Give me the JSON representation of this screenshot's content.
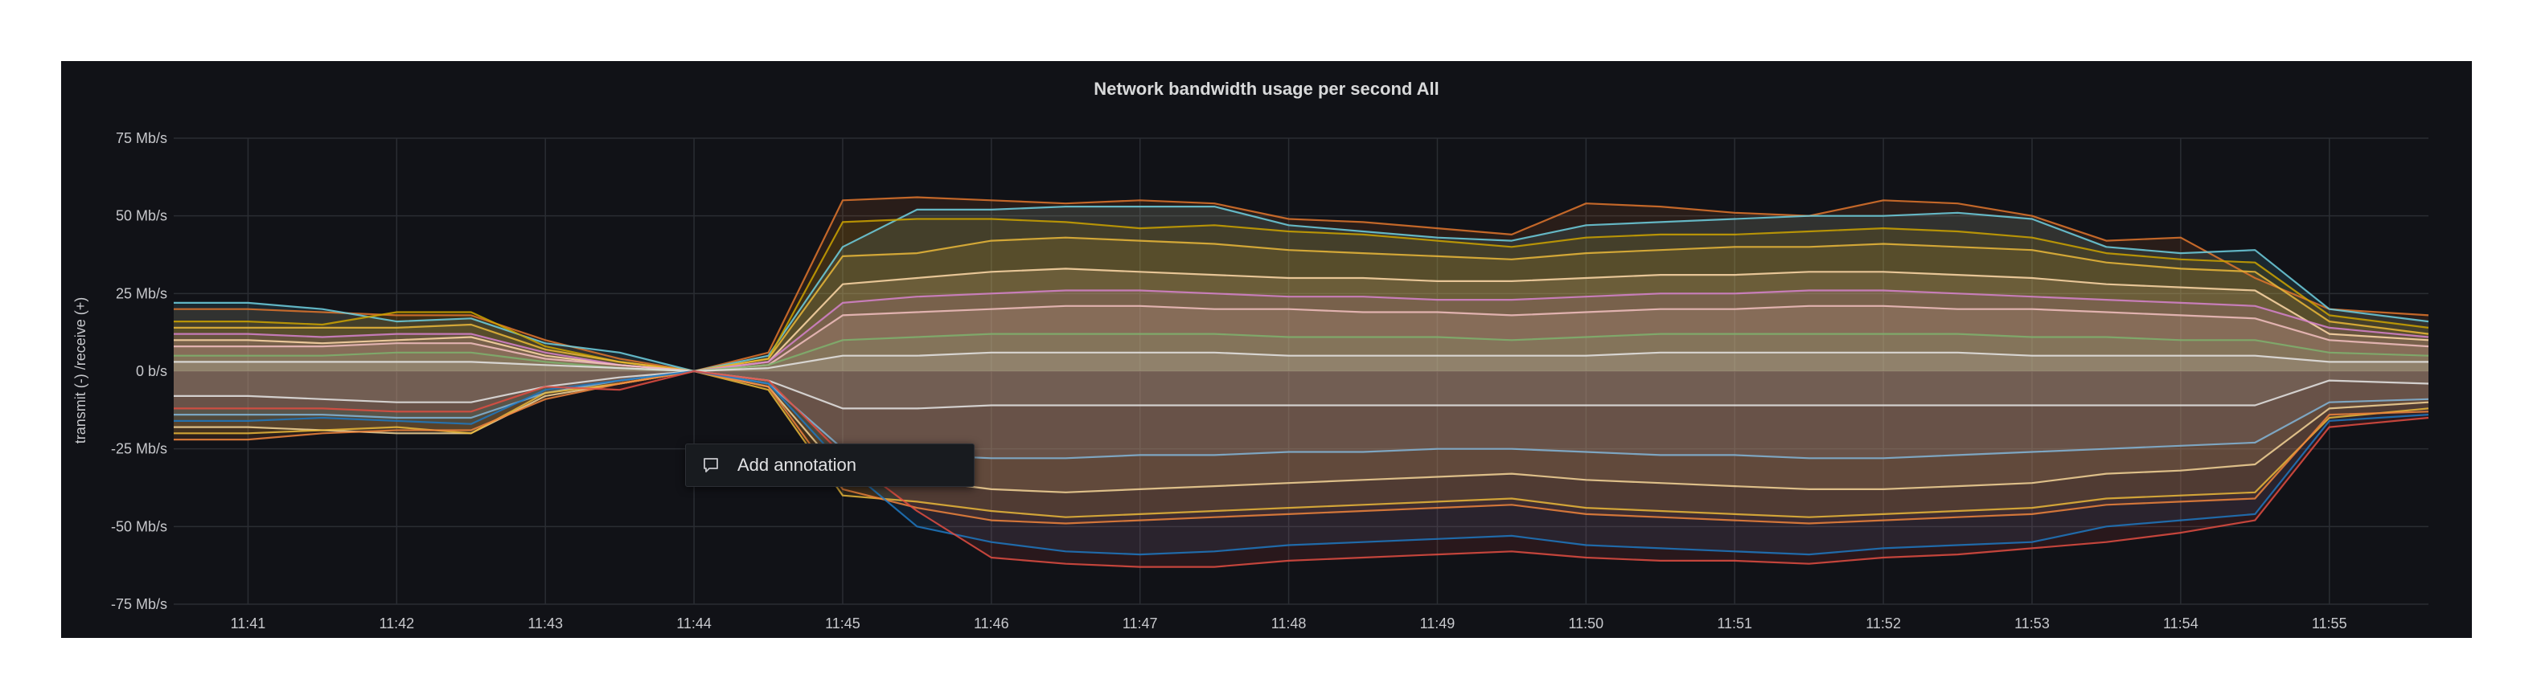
{
  "panel": {
    "title": "Network bandwidth usage per second All"
  },
  "annotation_menu": {
    "label": "Add annotation",
    "icon": "comment-icon"
  },
  "chart_data": {
    "type": "line",
    "title": "Network bandwidth usage per second All",
    "ylabel": "transmit (-) /receive (+)",
    "y_unit": "Mb/s",
    "ylim": [
      -75,
      75
    ],
    "yticks": [
      -75,
      -50,
      -25,
      0,
      25,
      50,
      75
    ],
    "ytick_labels": [
      "-75 Mb/s",
      "-50 Mb/s",
      "-25 Mb/s",
      "0 b/s",
      "25 Mb/s",
      "50 Mb/s",
      "75 Mb/s"
    ],
    "xlim": [
      "11:40:30",
      "11:55:40"
    ],
    "xticks": [
      "11:41",
      "11:42",
      "11:43",
      "11:44",
      "11:45",
      "11:46",
      "11:47",
      "11:48",
      "11:49",
      "11:50",
      "11:51",
      "11:52",
      "11:53",
      "11:54",
      "11:55"
    ],
    "grid": true,
    "legend": "none",
    "x": [
      "11:40:30",
      "11:41",
      "11:41:30",
      "11:42",
      "11:42:30",
      "11:43",
      "11:43:30",
      "11:44",
      "11:44:30",
      "11:45",
      "11:45:30",
      "11:46",
      "11:46:30",
      "11:47",
      "11:47:30",
      "11:48",
      "11:48:30",
      "11:49",
      "11:49:30",
      "11:50",
      "11:50:30",
      "11:51",
      "11:51:30",
      "11:52",
      "11:52:30",
      "11:53",
      "11:53:30",
      "11:54",
      "11:54:30",
      "11:55",
      "11:55:40"
    ],
    "series": [
      {
        "color": "#e0752d",
        "values": [
          20,
          20,
          19,
          18,
          18,
          10,
          4,
          0,
          6,
          55,
          56,
          55,
          54,
          55,
          54,
          49,
          48,
          46,
          44,
          54,
          53,
          51,
          50,
          55,
          54,
          50,
          42,
          43,
          30,
          20,
          18
        ]
      },
      {
        "color": "#6ed0e0",
        "values": [
          22,
          22,
          20,
          16,
          17,
          9,
          6,
          0,
          5,
          40,
          52,
          52,
          53,
          53,
          53,
          47,
          45,
          43,
          42,
          47,
          48,
          49,
          50,
          50,
          51,
          49,
          40,
          38,
          39,
          20,
          16
        ]
      },
      {
        "color": "#cca300",
        "values": [
          16,
          16,
          15,
          19,
          19,
          8,
          3,
          0,
          4,
          48,
          49,
          49,
          48,
          46,
          47,
          45,
          44,
          42,
          40,
          43,
          44,
          44,
          45,
          46,
          45,
          43,
          38,
          36,
          35,
          18,
          14
        ]
      },
      {
        "color": "#eab839",
        "values": [
          14,
          14,
          14,
          14,
          15,
          7,
          3,
          0,
          4,
          37,
          38,
          42,
          43,
          42,
          41,
          39,
          38,
          37,
          36,
          38,
          39,
          40,
          40,
          41,
          40,
          39,
          35,
          33,
          32,
          16,
          12
        ]
      },
      {
        "color": "#ffd9a8",
        "values": [
          10,
          10,
          9,
          10,
          11,
          5,
          2,
          0,
          3,
          28,
          30,
          32,
          33,
          32,
          31,
          30,
          30,
          29,
          29,
          30,
          31,
          31,
          32,
          32,
          31,
          30,
          28,
          27,
          26,
          12,
          10
        ]
      },
      {
        "color": "#d683ce",
        "values": [
          12,
          12,
          11,
          12,
          12,
          6,
          2,
          0,
          3,
          22,
          24,
          25,
          26,
          26,
          25,
          24,
          24,
          23,
          23,
          24,
          25,
          25,
          26,
          26,
          25,
          24,
          23,
          22,
          21,
          14,
          11
        ]
      },
      {
        "color": "#f2c0c0",
        "values": [
          8,
          8,
          8,
          9,
          9,
          4,
          2,
          0,
          2,
          18,
          19,
          20,
          21,
          21,
          20,
          20,
          19,
          19,
          18,
          19,
          20,
          20,
          21,
          21,
          20,
          20,
          19,
          18,
          17,
          10,
          8
        ]
      },
      {
        "color": "#7eb26d",
        "values": [
          5,
          5,
          5,
          6,
          6,
          3,
          1,
          0,
          2,
          10,
          11,
          12,
          12,
          12,
          12,
          11,
          11,
          11,
          10,
          11,
          12,
          12,
          12,
          12,
          12,
          11,
          11,
          10,
          10,
          6,
          5
        ]
      },
      {
        "color": "#e5e5e5",
        "values": [
          3,
          3,
          3,
          3,
          3,
          2,
          1,
          0,
          1,
          5,
          5,
          6,
          6,
          6,
          6,
          5,
          5,
          5,
          5,
          5,
          6,
          6,
          6,
          6,
          6,
          5,
          5,
          5,
          5,
          3,
          3
        ]
      },
      {
        "color": "#e5e5e5",
        "values": [
          -8,
          -8,
          -9,
          -10,
          -10,
          -5,
          -2,
          0,
          -3,
          -12,
          -12,
          -11,
          -11,
          -11,
          -11,
          -11,
          -11,
          -11,
          -11,
          -11,
          -11,
          -11,
          -11,
          -11,
          -11,
          -11,
          -11,
          -11,
          -11,
          -3,
          -4
        ]
      },
      {
        "color": "#82b5d8",
        "values": [
          -14,
          -14,
          -14,
          -15,
          -15,
          -7,
          -3,
          0,
          -4,
          -25,
          -27,
          -28,
          -28,
          -27,
          -27,
          -26,
          -26,
          -25,
          -25,
          -26,
          -27,
          -27,
          -28,
          -28,
          -27,
          -26,
          -25,
          -24,
          -23,
          -10,
          -9
        ]
      },
      {
        "color": "#f4d598",
        "values": [
          -18,
          -18,
          -19,
          -20,
          -20,
          -8,
          -4,
          0,
          -5,
          -33,
          -35,
          -38,
          -39,
          -38,
          -37,
          -36,
          -35,
          -34,
          -33,
          -35,
          -36,
          -37,
          -38,
          -38,
          -37,
          -36,
          -33,
          -32,
          -30,
          -12,
          -10
        ]
      },
      {
        "color": "#eab839",
        "values": [
          -20,
          -20,
          -19,
          -18,
          -20,
          -7,
          -4,
          0,
          -6,
          -40,
          -42,
          -45,
          -47,
          -46,
          -45,
          -44,
          -43,
          -42,
          -41,
          -44,
          -45,
          -46,
          -47,
          -46,
          -45,
          -44,
          -41,
          -40,
          -39,
          -15,
          -12
        ]
      },
      {
        "color": "#ef843c",
        "values": [
          -22,
          -22,
          -20,
          -19,
          -19,
          -9,
          -4,
          0,
          -5,
          -38,
          -44,
          -48,
          -49,
          -48,
          -47,
          -46,
          -45,
          -44,
          -43,
          -46,
          -47,
          -48,
          -49,
          -48,
          -47,
          -46,
          -43,
          -42,
          -41,
          -14,
          -13
        ]
      },
      {
        "color": "#1f78c1",
        "values": [
          -16,
          -16,
          -15,
          -16,
          -17,
          -6,
          -3,
          0,
          -4,
          -30,
          -50,
          -55,
          -58,
          -59,
          -58,
          -56,
          -55,
          -54,
          -53,
          -56,
          -57,
          -58,
          -59,
          -57,
          -56,
          -55,
          -50,
          -48,
          -46,
          -16,
          -14
        ]
      },
      {
        "color": "#e24d42",
        "values": [
          -12,
          -12,
          -12,
          -13,
          -13,
          -5,
          -6,
          0,
          -3,
          -27,
          -45,
          -60,
          -62,
          -63,
          -63,
          -61,
          -60,
          -59,
          -58,
          -60,
          -61,
          -61,
          -62,
          -60,
          -59,
          -57,
          -55,
          -52,
          -48,
          -18,
          -15
        ]
      }
    ]
  }
}
